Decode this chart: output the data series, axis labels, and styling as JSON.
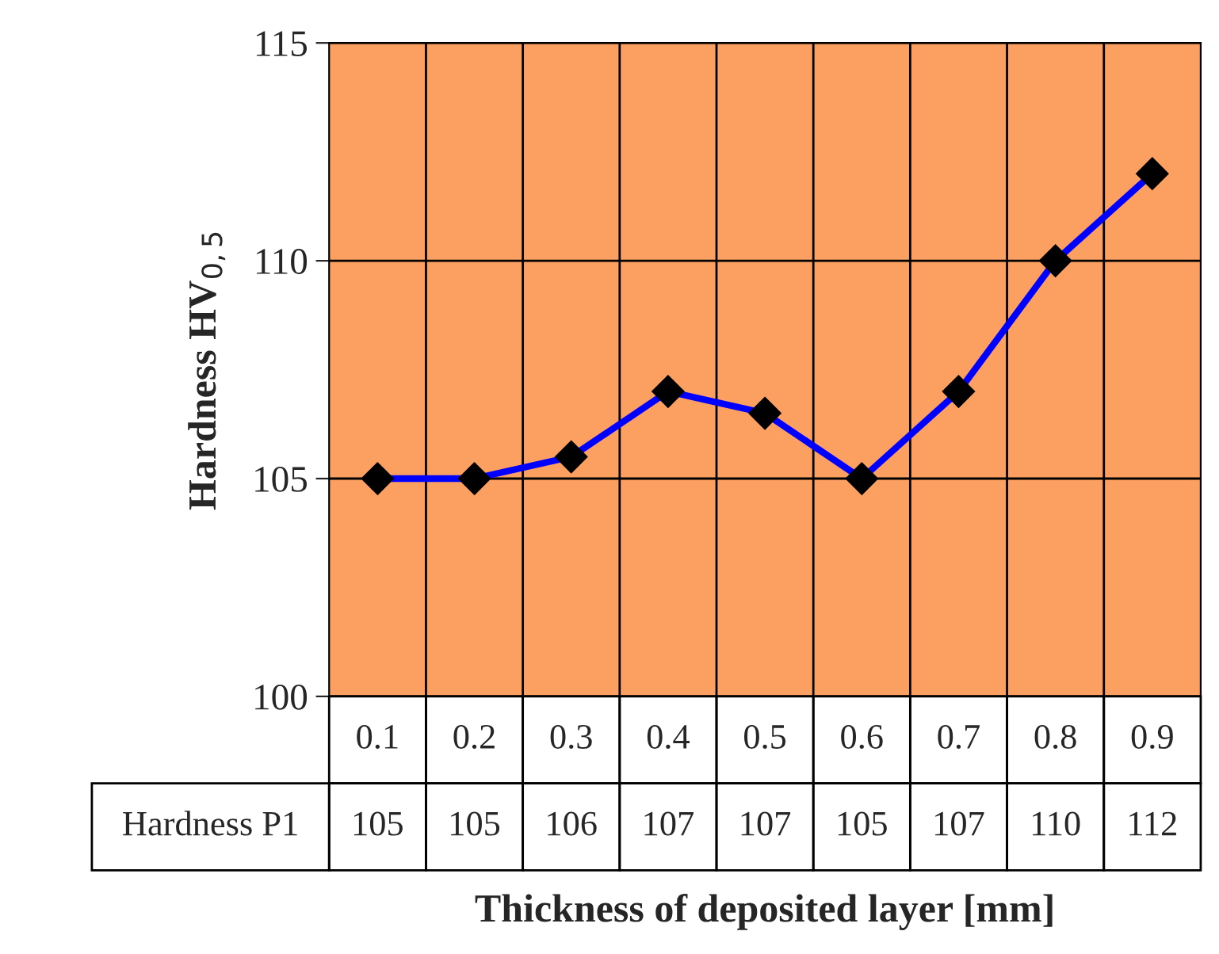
{
  "chart_data": {
    "type": "line",
    "xlabel": "Thickness of deposited layer [mm]",
    "ylabel": "Hardness HV$_{0,5}$",
    "categories": [
      "0.1",
      "0.2",
      "0.3",
      "0.4",
      "0.5",
      "0.6",
      "0.7",
      "0.8",
      "0.9"
    ],
    "series": [
      {
        "name": "Hardness P1",
        "color": "#0000ff",
        "values": [
          105,
          105,
          105.5,
          107,
          106.5,
          105,
          107,
          110,
          112
        ],
        "value_labels": [
          "105",
          "105",
          "106",
          "107",
          "107",
          "105",
          "107",
          "110",
          "112"
        ]
      }
    ],
    "ylim": [
      100,
      115
    ],
    "yticks": [
      100,
      105,
      110,
      115
    ],
    "grid": true,
    "legend": false,
    "marker": "diamond",
    "line_style": "solid"
  }
}
